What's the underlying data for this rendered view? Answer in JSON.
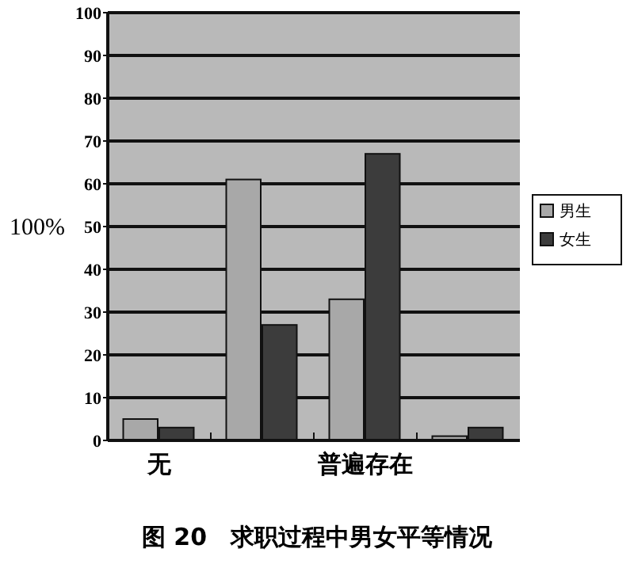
{
  "chart_data": {
    "type": "bar",
    "title": "图 20　求职过程中男女平等情况",
    "ylabel": "100%",
    "categories": [
      "无",
      null,
      "普遍存在",
      null
    ],
    "series": [
      {
        "name": "男生",
        "color": "#a8a8a8",
        "values": [
          5,
          61,
          33,
          1
        ]
      },
      {
        "name": "女生",
        "color": "#3c3c3c",
        "values": [
          3,
          27,
          67,
          3
        ]
      }
    ],
    "ylim": [
      0,
      100
    ],
    "yticks": [
      0,
      10,
      20,
      30,
      40,
      50,
      60,
      70,
      80,
      90,
      100
    ],
    "grid": "y",
    "legend": "right"
  }
}
